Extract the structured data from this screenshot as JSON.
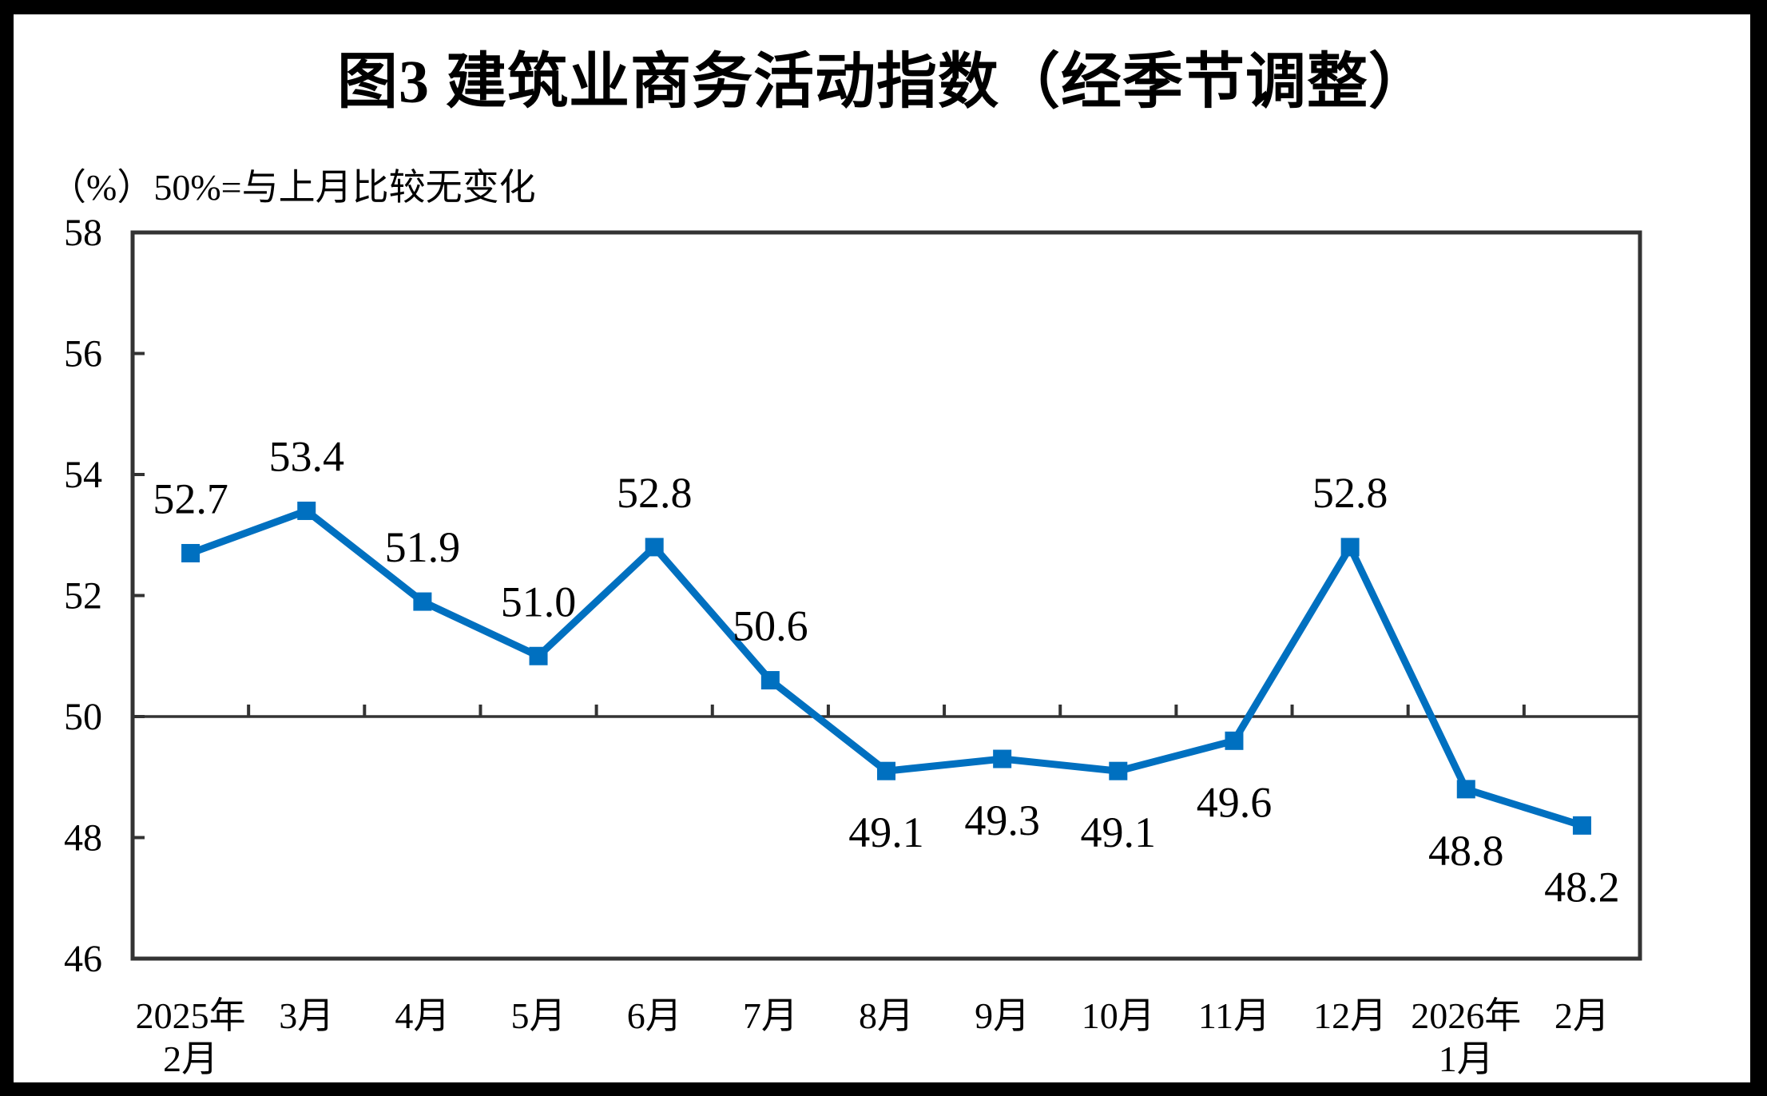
{
  "chart_data": {
    "type": "line",
    "title": "图3 建筑业商务活动指数（经季节调整）",
    "unit_note": "（%）50%=与上月比较无变化",
    "categories": [
      [
        "2025年",
        "2月"
      ],
      [
        "3月"
      ],
      [
        "4月"
      ],
      [
        "5月"
      ],
      [
        "6月"
      ],
      [
        "7月"
      ],
      [
        "8月"
      ],
      [
        "9月"
      ],
      [
        "10月"
      ],
      [
        "11月"
      ],
      [
        "12月"
      ],
      [
        "2026年",
        "1月"
      ],
      [
        "2月"
      ]
    ],
    "values": [
      52.7,
      53.4,
      51.9,
      51.0,
      52.8,
      50.6,
      49.1,
      49.3,
      49.1,
      49.6,
      52.8,
      48.8,
      48.2
    ],
    "data_labels": [
      "52.7",
      "53.4",
      "51.9",
      "51.0",
      "52.8",
      "50.6",
      "49.1",
      "49.3",
      "49.1",
      "49.6",
      "52.8",
      "48.8",
      "48.2"
    ],
    "label_position": [
      "above",
      "above",
      "above",
      "above",
      "above",
      "above",
      "below",
      "below",
      "below",
      "below",
      "above",
      "below",
      "below"
    ],
    "series_name": "建筑业商务活动指数",
    "ylim": [
      46,
      58
    ],
    "yticks": [
      "58",
      "56",
      "54",
      "52",
      "50",
      "48",
      "46"
    ],
    "ytick_step": 2,
    "reference_line": 50,
    "grid": "off",
    "legend": "none",
    "colors": {
      "line": "#0070C0",
      "marker": "#0070C0",
      "axis": "#333333",
      "text": "#000000",
      "background": "#ffffff",
      "frame": "#000000"
    }
  }
}
